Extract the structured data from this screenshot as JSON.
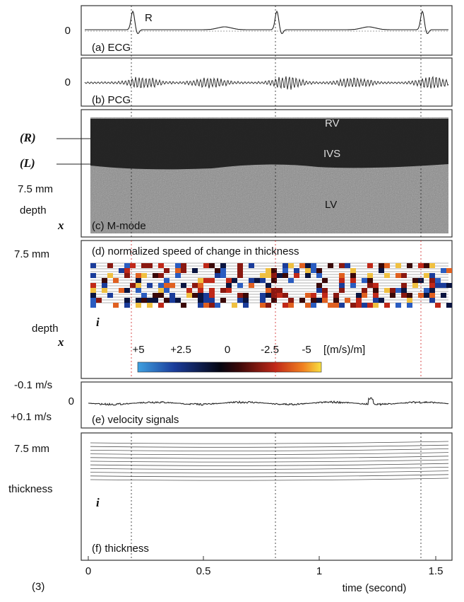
{
  "figure_label": "(3)",
  "panels": {
    "a": {
      "label": "(a) ECG",
      "zero": "0",
      "peak": "R"
    },
    "b": {
      "label": "(b) PCG",
      "zero": "0"
    },
    "c": {
      "label": "(c) M-mode",
      "wall_marks": [
        "(R)",
        "(L)"
      ],
      "regions": [
        "RV",
        "IVS",
        "LV"
      ],
      "scale": "7.5 mm",
      "axis": "depth",
      "axis_symbol": "x"
    },
    "d": {
      "label": "(d) normalized speed of change in thickness",
      "scale": "7.5 mm",
      "axis": "depth",
      "axis_symbol": "x",
      "index_symbol": "i",
      "colorbar": {
        "ticks": [
          "+5",
          "+2.5",
          "0",
          "-2.5",
          "-5"
        ],
        "unit": "[(m/s)/m]"
      }
    },
    "e": {
      "label": "(e) velocity signals",
      "top": "-0.1 m/s",
      "zero": "0",
      "bottom": "+0.1 m/s"
    },
    "f": {
      "label": "(f) thickness",
      "scale": "7.5 mm",
      "axis": "thickness",
      "index_symbol": "i"
    }
  },
  "time_axis": {
    "ticks": [
      "0",
      "0.5",
      "1",
      "1.5"
    ],
    "label": "time (second)"
  }
}
